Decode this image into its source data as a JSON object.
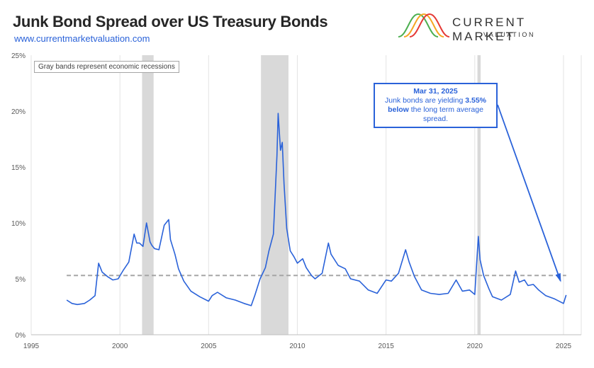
{
  "header": {
    "title": "Junk Bond Spread over US Treasury Bonds",
    "url": "www.currentmarketvaluation.com"
  },
  "logo": {
    "name": "CURRENT MARKET",
    "sub": "VALUATION",
    "colors": [
      "#4caf50",
      "#f5a623",
      "#e53935"
    ]
  },
  "note": "Gray bands represent economic recessions",
  "callout": {
    "date": "Mar 31, 2025",
    "line1_a": "Junk bonds are yielding",
    "line1_b": "3.55%",
    "line2_a": "below",
    "line2_b": "the long term average",
    "line3": "spread."
  },
  "chart_data": {
    "type": "line",
    "title": "Junk Bond Spread over US Treasury Bonds",
    "xlim": [
      1995,
      2026
    ],
    "ylim": [
      0,
      25
    ],
    "x_ticks": [
      1995,
      2000,
      2005,
      2010,
      2015,
      2020,
      2025
    ],
    "y_ticks": [
      0,
      5,
      10,
      15,
      20,
      25
    ],
    "y_tick_labels": [
      "0%",
      "5%",
      "10%",
      "15%",
      "20%",
      "25%"
    ],
    "grid": "vertical",
    "average_spread": 5.3,
    "recessions": [
      [
        2001.25,
        2001.9
      ],
      [
        2007.95,
        2009.5
      ],
      [
        2020.15,
        2020.33
      ]
    ],
    "colors": {
      "line": "#2a62d9",
      "average": "#a6a6a6",
      "recession": "#d9d9d9"
    },
    "series": [
      {
        "x": [
          1997.0,
          1997.3,
          1997.6,
          1998.0,
          1998.3,
          1998.6,
          1998.8,
          1999.0,
          1999.3,
          1999.6,
          1999.9,
          2000.2,
          2000.5,
          2000.8,
          2000.95,
          2001.1,
          2001.3,
          2001.5,
          2001.7,
          2001.8,
          2001.95,
          2002.2,
          2002.5,
          2002.75,
          2002.85,
          2003.1,
          2003.3,
          2003.6,
          2004.0,
          2004.5,
          2005.0,
          2005.2,
          2005.5,
          2006.0,
          2006.5,
          2007.0,
          2007.4,
          2007.6,
          2007.9,
          2008.2,
          2008.4,
          2008.65,
          2008.85,
          2008.92,
          2009.05,
          2009.15,
          2009.25,
          2009.4,
          2009.6,
          2009.8,
          2010.0,
          2010.3,
          2010.5,
          2010.8,
          2011.0,
          2011.4,
          2011.75,
          2011.9,
          2012.3,
          2012.7,
          2013.0,
          2013.5,
          2014.0,
          2014.5,
          2015.0,
          2015.3,
          2015.7,
          2016.1,
          2016.3,
          2016.6,
          2017.0,
          2017.5,
          2018.0,
          2018.5,
          2018.95,
          2019.3,
          2019.7,
          2020.0,
          2020.2,
          2020.3,
          2020.5,
          2020.8,
          2021.0,
          2021.5,
          2022.0,
          2022.3,
          2022.5,
          2022.8,
          2023.0,
          2023.3,
          2023.6,
          2024.0,
          2024.5,
          2025.0,
          2025.15
        ],
        "values": [
          3.1,
          2.8,
          2.7,
          2.8,
          3.1,
          3.5,
          6.4,
          5.6,
          5.2,
          4.9,
          5.0,
          5.8,
          6.5,
          9.0,
          8.2,
          8.2,
          7.9,
          10.0,
          8.3,
          8.0,
          7.7,
          7.6,
          9.8,
          10.3,
          8.5,
          7.2,
          5.9,
          4.8,
          3.9,
          3.4,
          3.0,
          3.5,
          3.8,
          3.3,
          3.1,
          2.8,
          2.6,
          3.5,
          5.0,
          6.0,
          7.5,
          9.0,
          16.0,
          19.8,
          16.5,
          17.2,
          13.5,
          9.5,
          7.5,
          7.0,
          6.4,
          6.8,
          6.0,
          5.3,
          5.0,
          5.5,
          8.2,
          7.2,
          6.2,
          5.9,
          5.0,
          4.8,
          4.0,
          3.7,
          4.9,
          4.8,
          5.5,
          7.6,
          6.5,
          5.2,
          4.0,
          3.7,
          3.6,
          3.7,
          4.9,
          3.9,
          4.0,
          3.6,
          8.8,
          6.7,
          5.3,
          4.1,
          3.4,
          3.1,
          3.6,
          5.7,
          4.7,
          4.9,
          4.4,
          4.5,
          4.0,
          3.5,
          3.2,
          2.8,
          3.55
        ]
      }
    ]
  }
}
